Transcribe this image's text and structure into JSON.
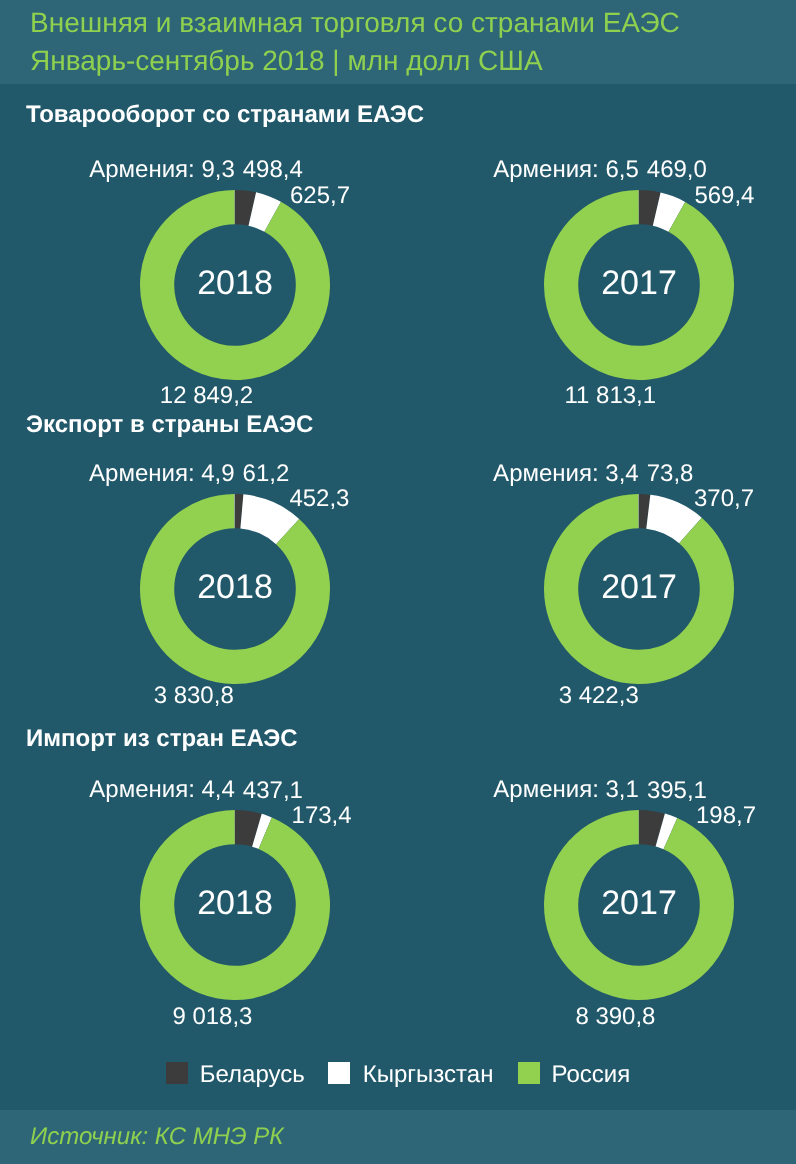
{
  "chart_data": [
    {
      "type": "donut",
      "title": "2018",
      "subtitle": "Товарооборот со странами ЕАЭС",
      "annotations": [
        "Внешняя и взаимная торговля со странами ЕАЭС",
        "Январь-сентябрь 2018 | млн долл США"
      ],
      "categories": [
        null,
        null,
        null,
        null
      ],
      "values": [
        498.4,
        625.7,
        12849.2,
        9.3
      ],
      "value_labels": [
        "498,4",
        "625,7",
        "12 849,2",
        "Армения: 9,3"
      ],
      "colors": [
        "#3c3c3c",
        "#ffffff",
        "#92d050",
        "#c0c0c0"
      ]
    },
    {
      "type": "donut",
      "title": "2017",
      "categories": [
        null,
        null,
        null,
        null
      ],
      "values": [
        469.0,
        569.4,
        11813.1,
        6.5
      ],
      "value_labels": [
        "469,0",
        "569,4",
        "11 813,1",
        "Армения: 6,5"
      ],
      "colors": [
        "#3c3c3c",
        "#ffffff",
        "#92d050",
        "#c0c0c0"
      ]
    },
    {
      "type": "donut",
      "title": "2018",
      "subtitle": "Экспорт в страны ЕАЭС",
      "categories": [
        null,
        null,
        null,
        null
      ],
      "values": [
        61.2,
        452.3,
        3830.8,
        4.9
      ],
      "value_labels": [
        "61,2",
        "452,3",
        "3 830,8",
        "Армения: 4,9"
      ],
      "colors": [
        "#3c3c3c",
        "#ffffff",
        "#92d050",
        "#c0c0c0"
      ]
    },
    {
      "type": "donut",
      "title": "2017",
      "categories": [
        null,
        null,
        null,
        null
      ],
      "values": [
        73.8,
        370.7,
        3422.3,
        3.4
      ],
      "value_labels": [
        "73,8",
        "370,7",
        "3 422,3",
        "Армения: 3,4"
      ],
      "colors": [
        "#3c3c3c",
        "#ffffff",
        "#92d050",
        "#c0c0c0"
      ]
    },
    {
      "type": "donut",
      "title": "2018",
      "subtitle": "Импорт из стран ЕАЭС",
      "categories": [
        null,
        null,
        null,
        null
      ],
      "values": [
        437.1,
        173.4,
        9018.3,
        4.4
      ],
      "value_labels": [
        "437,1",
        "173,4",
        "9 018,3",
        "Армения: 4,4"
      ],
      "colors": [
        "#3c3c3c",
        "#ffffff",
        "#92d050",
        "#c0c0c0"
      ]
    },
    {
      "type": "donut",
      "title": "2017",
      "legend": "bottom",
      "annotations": [
        "Источник: КС МНЭ РК"
      ],
      "categories": [
        "Беларусь",
        "Кыргызстан",
        "Россия",
        null
      ],
      "values": [
        395.1,
        198.7,
        8390.8,
        3.1
      ],
      "value_labels": [
        "395,1",
        "198,7",
        "8 390,8",
        "Армения: 3,1"
      ],
      "colors": [
        "#3c3c3c",
        "#ffffff",
        "#92d050",
        "#c0c0c0"
      ]
    }
  ]
}
